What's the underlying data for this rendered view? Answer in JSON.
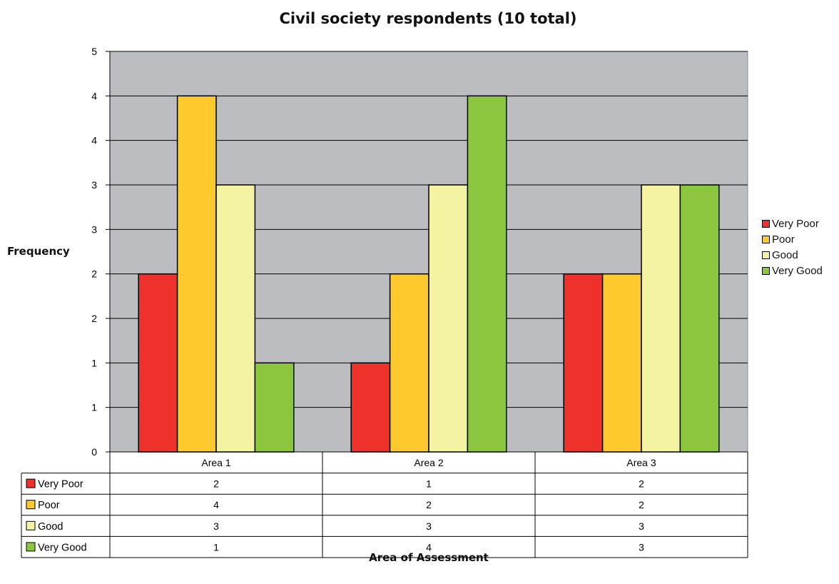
{
  "chart_data": {
    "type": "bar",
    "title": "Civil society respondents (10 total)",
    "xlabel": "Area of Assessment",
    "ylabel": "Frequency",
    "categories": [
      "Area 1",
      "Area 2",
      "Area 3"
    ],
    "series": [
      {
        "name": "Very Poor",
        "values": [
          2,
          1,
          2
        ],
        "color": "#ee312b"
      },
      {
        "name": "Poor",
        "values": [
          4,
          2,
          2
        ],
        "color": "#fec92d"
      },
      {
        "name": "Good",
        "values": [
          3,
          3,
          3
        ],
        "color": "#f4f3a1"
      },
      {
        "name": "Very Good",
        "values": [
          1,
          4,
          3
        ],
        "color": "#8cc63f"
      }
    ],
    "y_tick_labels": [
      "0",
      "1",
      "1",
      "2",
      "2",
      "3",
      "3",
      "4",
      "4",
      "5"
    ],
    "ylim": [
      0,
      4.5
    ],
    "grid": true,
    "plot_background": "#bcbdc1",
    "legend_position": "right",
    "data_table": true
  }
}
